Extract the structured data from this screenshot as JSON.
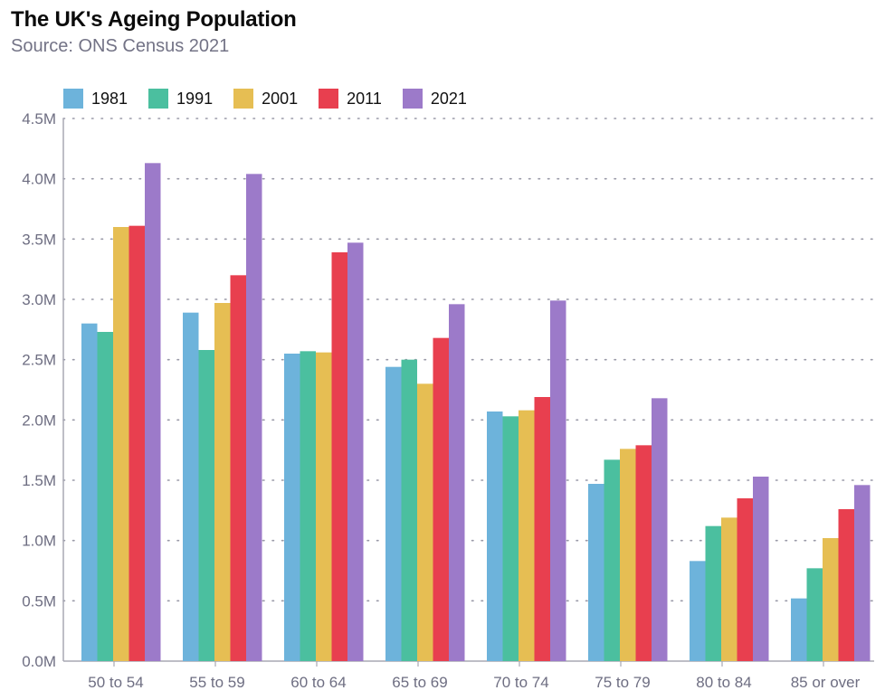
{
  "title": "The UK's Ageing Population",
  "subtitle": "Source: ONS Census 2021",
  "chart_data": {
    "type": "bar",
    "title": "The UK's Ageing Population",
    "subtitle": "Source: ONS Census 2021",
    "xlabel": "",
    "ylabel": "",
    "categories": [
      "50 to 54",
      "55 to 59",
      "60 to 64",
      "65 to 69",
      "70 to 74",
      "75 to 79",
      "80 to 84",
      "85 or over"
    ],
    "series": [
      {
        "name": "1981",
        "color": "#6db3db",
        "values": [
          2.8,
          2.89,
          2.55,
          2.44,
          2.07,
          1.47,
          0.83,
          0.52
        ]
      },
      {
        "name": "1991",
        "color": "#4bbf9f",
        "values": [
          2.73,
          2.58,
          2.57,
          2.5,
          2.03,
          1.67,
          1.12,
          0.77
        ]
      },
      {
        "name": "2001",
        "color": "#e6be53",
        "values": [
          3.6,
          2.97,
          2.56,
          2.3,
          2.08,
          1.76,
          1.19,
          1.02
        ]
      },
      {
        "name": "2011",
        "color": "#e83f4f",
        "values": [
          3.61,
          3.2,
          3.39,
          2.68,
          2.19,
          1.79,
          1.35,
          1.26
        ]
      },
      {
        "name": "2021",
        "color": "#9c7ac9",
        "values": [
          4.13,
          4.04,
          3.47,
          2.96,
          2.99,
          2.18,
          1.53,
          1.46
        ]
      }
    ],
    "ylim": [
      0,
      4.5
    ],
    "yticks": [
      "0.0M",
      "0.5M",
      "1.0M",
      "1.5M",
      "2.0M",
      "2.5M",
      "3.0M",
      "3.5M",
      "4.0M",
      "4.5M"
    ],
    "grid": true,
    "legend_position": "top-left"
  }
}
